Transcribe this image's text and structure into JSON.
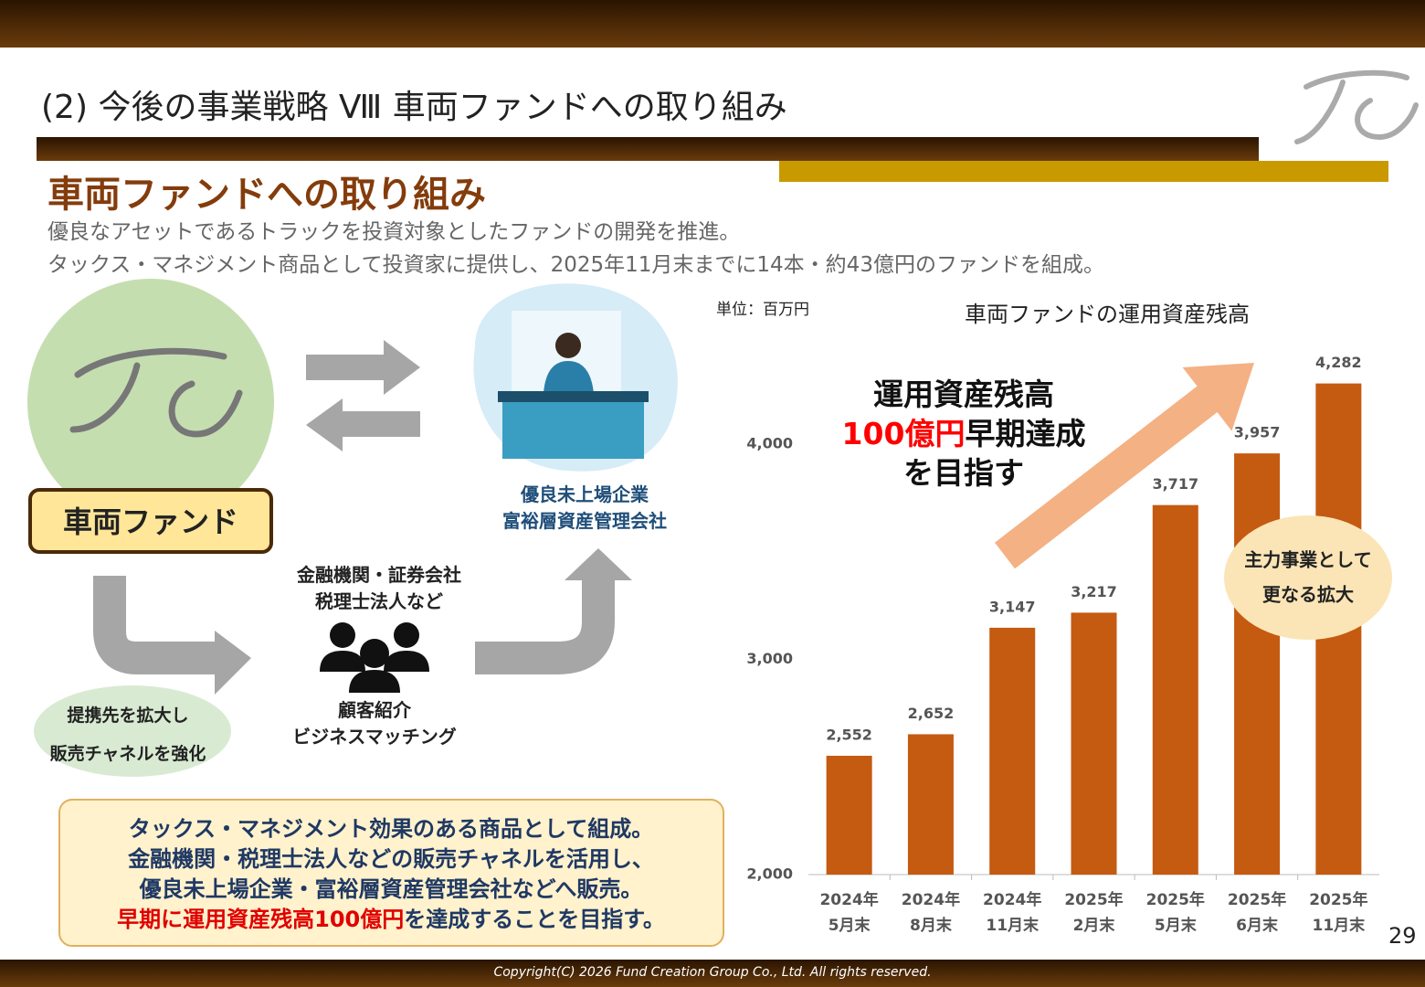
{
  "header": {
    "title": "(2) 今後の事業戦略 Ⅷ 車両ファンドへの取り組み"
  },
  "section": {
    "heading": "車両ファンドへの取り組み",
    "lines": [
      "優良なアセットであるトラックを投資対象としたファンドの開発を推進。",
      "タックス・マネジメント商品として投資家に提供し、2025年11月末までに14本・約43億円のファンドを組成。"
    ]
  },
  "diagram": {
    "fund_label": "車両ファンド",
    "target": [
      "優良未上場企業",
      "富裕層資産管理会社"
    ],
    "partners": [
      "金融機関・証券会社",
      "税理士法人など"
    ],
    "intro": [
      "顧客紹介",
      "ビジネスマッチング"
    ],
    "expand": [
      "提携先を拡大し",
      "販売チャネルを強化"
    ]
  },
  "summary": {
    "lines": [
      "タックス・マネジメント効果のある商品として組成。",
      "金融機関・税理士法人などの販売チャネルを活用し、",
      "優良未上場企業・富裕層資産管理会社などへ販売。"
    ],
    "last_line": {
      "highlight": "早期に運用資産残高100億円",
      "rest": "を達成することを目指す。"
    }
  },
  "chart_data": {
    "type": "bar",
    "title": "車両ファンドの運用資産残高",
    "unit": "単位：百万円",
    "categories": [
      "2024年\n5月末",
      "2024年\n8月末",
      "2024年\n11月末",
      "2025年\n2月末",
      "2025年\n5月末",
      "2025年\n6月末",
      "2025年\n11月末"
    ],
    "values": [
      2552,
      2652,
      3147,
      3217,
      3717,
      3957,
      4282
    ],
    "value_labels": [
      "2,552",
      "2,652",
      "3,147",
      "3,217",
      "3,717",
      "3,957",
      "4,282"
    ],
    "color": "#c55a11",
    "ylim": [
      2000,
      4500
    ],
    "yticks": [
      {
        "value": 2000,
        "label": "2,000"
      },
      {
        "value": 3000,
        "label": "3,000"
      },
      {
        "value": 4000,
        "label": "4,000"
      }
    ],
    "grid": false,
    "annotation": {
      "line1": "運用資産残高",
      "line2_red": "100億円",
      "line2_rest": "早期達成",
      "line3": "を目指す"
    },
    "callout": [
      "主力事業として",
      "更なる拡大"
    ]
  },
  "page_number": "29",
  "footer": "Copyright(C) 2026 Fund Creation Group Co., Ltd. All rights reserved."
}
